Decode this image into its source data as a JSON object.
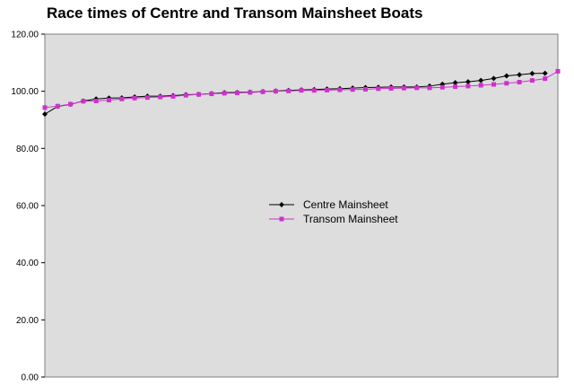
{
  "chart_data": {
    "type": "line",
    "title": "Race times of Centre and Transom Mainsheet Boats",
    "xlabel": "",
    "ylabel": "",
    "ylim": [
      0,
      120
    ],
    "y_ticks": [
      "0.00",
      "20.00",
      "40.00",
      "60.00",
      "80.00",
      "100.00",
      "120.00"
    ],
    "grid": false,
    "legend_position": "center-right",
    "plot_background": "#dddddd",
    "series": [
      {
        "name": "Centre Mainsheet",
        "color": "#000000",
        "marker": "diamond",
        "x": [
          1,
          2,
          3,
          4,
          5,
          6,
          7,
          8,
          9,
          10,
          11,
          12,
          13,
          14,
          15,
          16,
          17,
          18,
          19,
          20,
          21,
          22,
          23,
          24,
          25,
          26,
          27,
          28,
          29,
          30,
          31,
          32,
          33,
          34,
          35,
          36,
          37,
          38,
          39,
          40
        ],
        "values": [
          92.0,
          94.7,
          95.4,
          96.6,
          97.3,
          97.6,
          97.7,
          98.0,
          98.3,
          98.3,
          98.5,
          98.8,
          98.9,
          99.2,
          99.5,
          99.6,
          99.7,
          99.9,
          100.1,
          100.3,
          100.5,
          100.6,
          100.8,
          100.9,
          101.1,
          101.3,
          101.4,
          101.5,
          101.5,
          101.5,
          101.8,
          102.5,
          103.0,
          103.3,
          103.8,
          104.5,
          105.4,
          105.8,
          106.2,
          106.3
        ]
      },
      {
        "name": "Transom Mainsheet",
        "color": "#cc33cc",
        "marker": "square",
        "x": [
          1,
          2,
          3,
          4,
          5,
          6,
          7,
          8,
          9,
          10,
          11,
          12,
          13,
          14,
          15,
          16,
          17,
          18,
          19,
          20,
          21,
          22,
          23,
          24,
          25,
          26,
          27,
          28,
          29,
          30,
          31,
          32,
          33,
          34,
          35,
          36,
          37,
          38,
          39,
          40,
          41
        ],
        "values": [
          94.3,
          94.8,
          95.5,
          96.5,
          96.6,
          96.9,
          97.3,
          97.6,
          97.8,
          98.0,
          98.2,
          98.6,
          98.9,
          99.1,
          99.3,
          99.4,
          99.6,
          99.8,
          100.0,
          100.1,
          100.3,
          100.3,
          100.4,
          100.5,
          100.6,
          100.7,
          100.9,
          101.0,
          101.1,
          101.2,
          101.2,
          101.4,
          101.6,
          101.8,
          102.1,
          102.4,
          102.8,
          103.2,
          103.8,
          104.4,
          107.0
        ]
      }
    ]
  }
}
